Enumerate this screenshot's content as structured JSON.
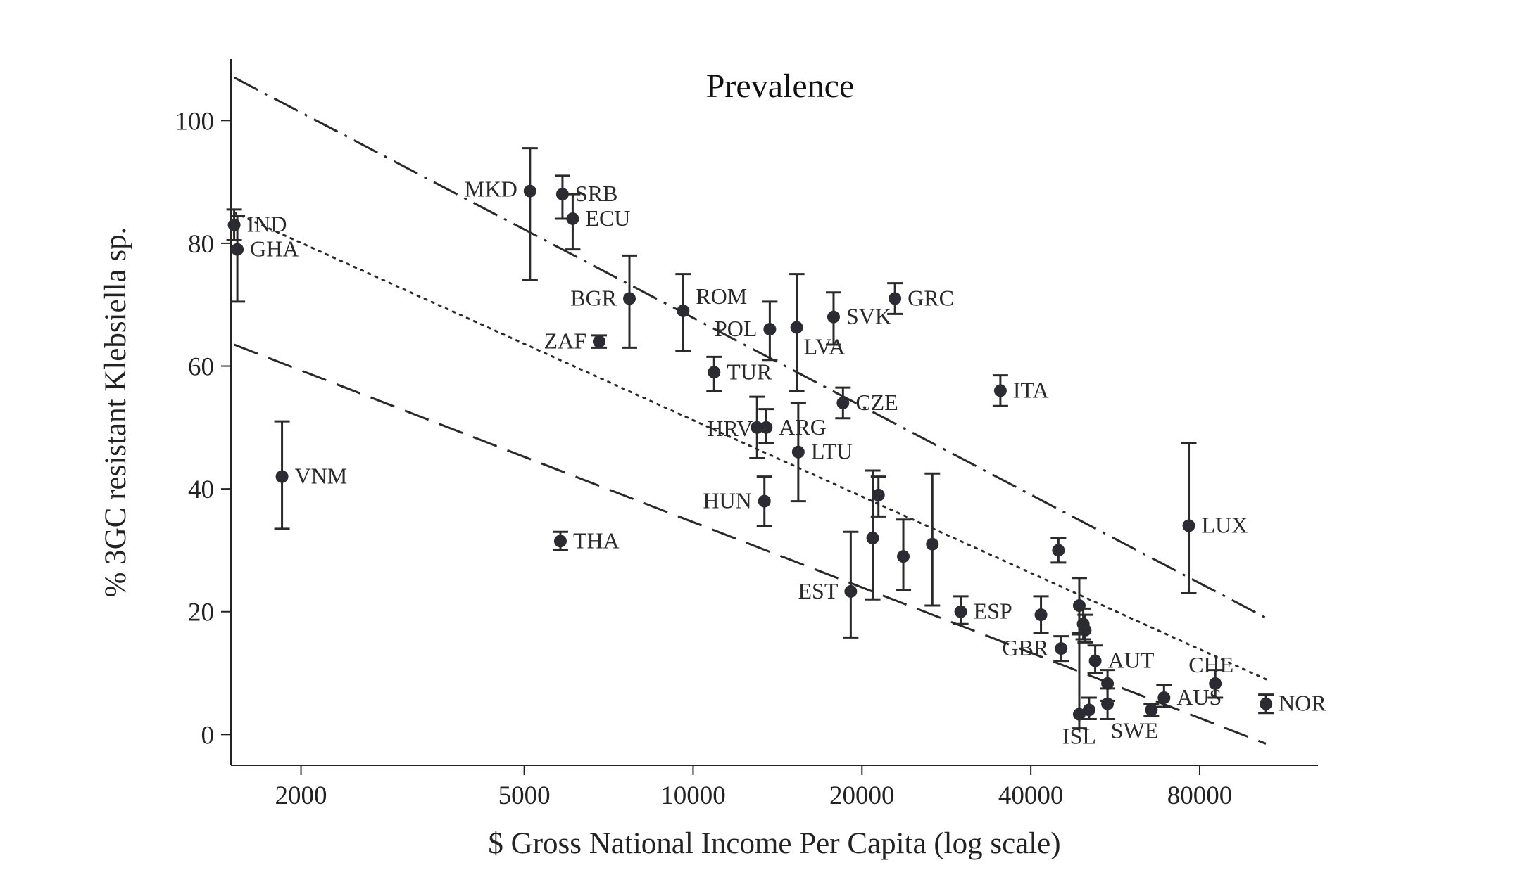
{
  "chart_data": {
    "type": "scatter",
    "title": "Prevalence",
    "xlabel": "$ Gross National Income Per Capita (log scale)",
    "ylabel": "% 3GC resistant Klebsiella sp.",
    "x_scale": "log",
    "xlim": [
      1500,
      130000
    ],
    "ylim": [
      -5,
      110
    ],
    "x_ticks": [
      2000,
      5000,
      10000,
      20000,
      40000,
      80000
    ],
    "x_tick_labels": [
      "2000",
      "5000",
      "10000",
      "20000",
      "40000",
      "80000"
    ],
    "y_ticks": [
      0,
      20,
      40,
      60,
      80,
      100
    ],
    "y_tick_labels": [
      "0",
      "20",
      "40",
      "60",
      "80",
      "100"
    ],
    "grid": false,
    "points": [
      {
        "label": "IND",
        "x": 1520,
        "y": 83,
        "lo": 80.5,
        "hi": 85.5
      },
      {
        "label": "GHA",
        "x": 1540,
        "y": 79,
        "lo": 70.5,
        "hi": 84.5
      },
      {
        "label": "VNM",
        "x": 1850,
        "y": 42,
        "lo": 33.5,
        "hi": 51
      },
      {
        "label": "MKD",
        "x": 5120,
        "y": 88.5,
        "lo": 74,
        "hi": 95.5
      },
      {
        "label": "SRB",
        "x": 5850,
        "y": 88,
        "lo": 84,
        "hi": 91
      },
      {
        "label": "ECU",
        "x": 6100,
        "y": 84,
        "lo": 79,
        "hi": 88
      },
      {
        "label": "THA",
        "x": 5800,
        "y": 31.5,
        "lo": 30,
        "hi": 33
      },
      {
        "label": "ZAF",
        "x": 6800,
        "y": 64,
        "lo": 63,
        "hi": 65
      },
      {
        "label": "BGR",
        "x": 7700,
        "y": 71,
        "lo": 63,
        "hi": 78
      },
      {
        "label": "ROM",
        "x": 9600,
        "y": 69,
        "lo": 62.5,
        "hi": 75
      },
      {
        "label": "TUR",
        "x": 10900,
        "y": 59,
        "lo": 56,
        "hi": 61.5
      },
      {
        "label": "HRV",
        "x": 13000,
        "y": 50,
        "lo": 45,
        "hi": 55
      },
      {
        "label": "ARG",
        "x": 13500,
        "y": 50,
        "lo": 47.5,
        "hi": 53
      },
      {
        "label": "HUN",
        "x": 13400,
        "y": 38,
        "lo": 34,
        "hi": 42
      },
      {
        "label": "POL",
        "x": 13700,
        "y": 66,
        "lo": 61,
        "hi": 70.5
      },
      {
        "label": "LVA",
        "x": 15300,
        "y": 66.3,
        "lo": 56,
        "hi": 75
      },
      {
        "label": "LTU",
        "x": 15400,
        "y": 46,
        "lo": 38,
        "hi": 54
      },
      {
        "label": "SVK",
        "x": 17800,
        "y": 68,
        "lo": 63.5,
        "hi": 72
      },
      {
        "label": "CZE",
        "x": 18500,
        "y": 54,
        "lo": 51.5,
        "hi": 56.5
      },
      {
        "label": "EST",
        "x": 19100,
        "y": 23.3,
        "lo": 15.8,
        "hi": 33
      },
      {
        "label": "",
        "x": 20900,
        "y": 32,
        "lo": 22,
        "hi": 43
      },
      {
        "label": "",
        "x": 21400,
        "y": 39,
        "lo": 35.5,
        "hi": 42
      },
      {
        "label": "GRC",
        "x": 22900,
        "y": 71,
        "lo": 68.5,
        "hi": 73.5
      },
      {
        "label": "",
        "x": 23700,
        "y": 29,
        "lo": 23.5,
        "hi": 35
      },
      {
        "label": "",
        "x": 26700,
        "y": 31,
        "lo": 21,
        "hi": 42.5
      },
      {
        "label": "ESP",
        "x": 30000,
        "y": 20,
        "lo": 18,
        "hi": 22.5
      },
      {
        "label": "ITA",
        "x": 35300,
        "y": 56,
        "lo": 53.5,
        "hi": 58.5
      },
      {
        "label": "",
        "x": 41700,
        "y": 19.5,
        "lo": 16.5,
        "hi": 22.5
      },
      {
        "label": "",
        "x": 44800,
        "y": 30,
        "lo": 28,
        "hi": 32
      },
      {
        "label": "GBR",
        "x": 45300,
        "y": 14,
        "lo": 12,
        "hi": 16
      },
      {
        "label": "",
        "x": 48800,
        "y": 21,
        "lo": 16.5,
        "hi": 25.5
      },
      {
        "label": "",
        "x": 49600,
        "y": 18,
        "lo": 15.5,
        "hi": 20.5
      },
      {
        "label": "",
        "x": 50000,
        "y": 17,
        "lo": 15,
        "hi": 19.5
      },
      {
        "label": "ISL",
        "x": 48800,
        "y": 3.3,
        "lo": 1,
        "hi": 16.3
      },
      {
        "label": "",
        "x": 50800,
        "y": 4,
        "lo": 2.5,
        "hi": 6
      },
      {
        "label": "AUT",
        "x": 52100,
        "y": 12,
        "lo": 10,
        "hi": 14.5
      },
      {
        "label": "",
        "x": 54800,
        "y": 8.3,
        "lo": 5.5,
        "hi": 10.5
      },
      {
        "label": "",
        "x": 54800,
        "y": 5,
        "lo": 2.5,
        "hi": 7.5
      },
      {
        "label": "SWE",
        "x": 65600,
        "y": 4,
        "lo": 3,
        "hi": 5
      },
      {
        "label": "AUS",
        "x": 69100,
        "y": 6,
        "lo": 4.5,
        "hi": 8
      },
      {
        "label": "LUX",
        "x": 76500,
        "y": 34,
        "lo": 23,
        "hi": 47.5
      },
      {
        "label": "CHE",
        "x": 85300,
        "y": 8.3,
        "lo": 6,
        "hi": 10.5
      },
      {
        "label": "NOR",
        "x": 105000,
        "y": 5,
        "lo": 3.5,
        "hi": 6.5
      }
    ],
    "trend_lines": [
      {
        "style": "dash-dot",
        "x": [
          1520,
          105000
        ],
        "y": [
          107,
          19
        ]
      },
      {
        "style": "dotted",
        "x": [
          1520,
          105000
        ],
        "y": [
          85,
          9
        ]
      },
      {
        "style": "dashed",
        "x": [
          1520,
          105000
        ],
        "y": [
          63.5,
          -1.5
        ]
      }
    ]
  }
}
